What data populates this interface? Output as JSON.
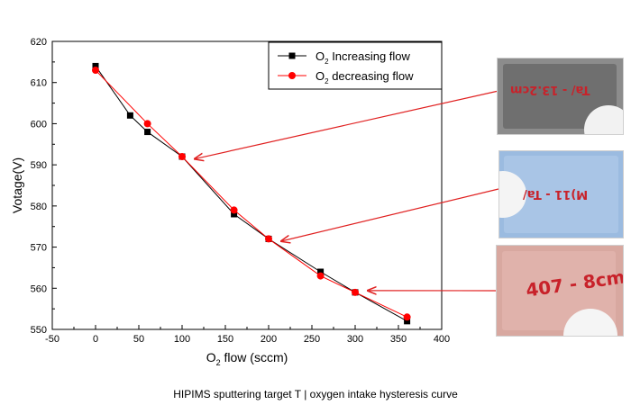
{
  "chart_data": {
    "type": "line",
    "xlabel_main": "O",
    "xlabel_sub": "2",
    "xlabel_rest": " flow (sccm)",
    "ylabel": "Votage(V)",
    "xlim": [
      -50,
      400
    ],
    "ylim": [
      550,
      620
    ],
    "xticks": [
      -50,
      0,
      50,
      100,
      150,
      200,
      250,
      300,
      350,
      400
    ],
    "yticks": [
      550,
      560,
      570,
      580,
      590,
      600,
      610,
      620
    ],
    "legend_position": "top-right",
    "series": [
      {
        "name_main": "O",
        "name_sub": "2",
        "name_rest": " Increasing flow",
        "marker": "square",
        "color": "#000000",
        "x": [
          0,
          40,
          60,
          100,
          160,
          200,
          260,
          300,
          360
        ],
        "y": [
          614,
          602,
          598,
          592,
          578,
          572,
          564,
          559,
          552
        ]
      },
      {
        "name_main": "O",
        "name_sub": "2",
        "name_rest": " decreasing flow",
        "marker": "circle",
        "color": "#ff0000",
        "x": [
          0,
          60,
          100,
          160,
          200,
          260,
          300,
          360
        ],
        "y": [
          613,
          600,
          592,
          579,
          572,
          563,
          559,
          553
        ]
      }
    ],
    "annotations": [
      {
        "target_x": 100,
        "target_y": 591,
        "label": "Ta/ - 13.2cm"
      },
      {
        "target_x": 200,
        "target_y": 571,
        "label": "M)11 - Ta/"
      },
      {
        "target_x": 300,
        "target_y": 559,
        "label": "407 - 8cm"
      }
    ]
  },
  "caption": "HIPIMS sputtering target T | oxygen intake hysteresis curve"
}
